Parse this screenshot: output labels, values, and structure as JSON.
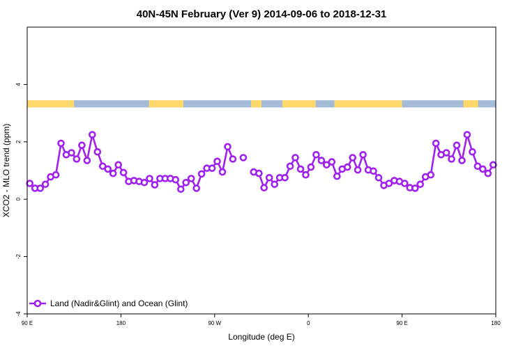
{
  "chart_data": {
    "type": "line",
    "title": "40N-45N February (Ver 9)   2014-09-06 to 2018-12-31",
    "xlabel": "Longitude (deg E)",
    "ylabel": "XCO2 - MLO trend (ppm)",
    "xlim": [
      90,
      540
    ],
    "ylim": [
      -4,
      6
    ],
    "x_ticks": [
      {
        "value": 90,
        "label": "90 E"
      },
      {
        "value": 180,
        "label": "180"
      },
      {
        "value": 270,
        "label": "90 W"
      },
      {
        "value": 360,
        "label": "0"
      },
      {
        "value": 450,
        "label": "90 E"
      },
      {
        "value": 540,
        "label": "180"
      }
    ],
    "y_ticks": [
      {
        "value": -4,
        "label": "-4"
      },
      {
        "value": -2,
        "label": "-2"
      },
      {
        "value": 0,
        "label": "0"
      },
      {
        "value": 2,
        "label": "2"
      },
      {
        "value": 4,
        "label": "4"
      }
    ],
    "grid": false,
    "legend": {
      "position": "bottom-left",
      "entries": [
        "Land (Nadir&Glint) and Ocean (Glint)"
      ]
    },
    "colors": {
      "series": "#a020f0",
      "land": "#ffd86c",
      "ocean": "#a4bcd8"
    },
    "land_ocean_band": {
      "y_range": [
        3.2,
        3.45
      ],
      "land_segments": [
        [
          90,
          135
        ],
        [
          207,
          240
        ],
        [
          305,
          315
        ],
        [
          335,
          367
        ],
        [
          385,
          450
        ],
        [
          509,
          523
        ]
      ]
    },
    "series": [
      {
        "name": "Land (Nadir&Glint) and Ocean (Glint)",
        "x": [
          92.5,
          97.5,
          102.5,
          107.5,
          112.5,
          117.5,
          122.5,
          127.5,
          132.5,
          137.5,
          142.5,
          147.5,
          152.5,
          157.5,
          162.5,
          167.5,
          172.5,
          177.5,
          182.5,
          187.5,
          192.5,
          197.5,
          202.5,
          207.5,
          212.5,
          217.5,
          222.5,
          227.5,
          232.5,
          237.5,
          242.5,
          247.5,
          252.5,
          257.5,
          262.5,
          267.5,
          272.5,
          277.5,
          282.5,
          287.5,
          292.5,
          297.5,
          302.5,
          307.5,
          312.5,
          317.5,
          322.5,
          327.5,
          332.5,
          337.5,
          342.5,
          347.5,
          352.5,
          357.5,
          362.5,
          367.5,
          372.5,
          377.5,
          382.5,
          387.5,
          392.5,
          397.5,
          402.5,
          407.5,
          412.5,
          417.5,
          422.5,
          427.5,
          432.5,
          437.5,
          442.5,
          447.5,
          452.5,
          457.5,
          462.5,
          467.5,
          472.5,
          477.5,
          482.5,
          487.5,
          492.5,
          497.5,
          502.5,
          507.5,
          512.5,
          517.5,
          522.5,
          527.5,
          532.5,
          537.5
        ],
        "values": [
          0.55,
          0.38,
          0.38,
          0.52,
          0.78,
          0.85,
          1.95,
          1.55,
          1.62,
          1.4,
          1.88,
          1.35,
          2.25,
          1.65,
          1.15,
          1.05,
          0.9,
          1.2,
          0.93,
          0.62,
          0.65,
          0.62,
          0.58,
          0.72,
          0.5,
          0.72,
          0.72,
          0.72,
          0.68,
          0.35,
          0.58,
          0.72,
          0.38,
          0.88,
          1.08,
          1.08,
          1.32,
          0.95,
          1.83,
          1.4,
          null,
          1.45,
          null,
          0.95,
          0.9,
          0.4,
          0.75,
          0.52,
          0.75,
          0.75,
          1.15,
          1.45,
          1.05,
          0.85,
          1.12,
          1.55,
          1.35,
          1.2,
          1.3,
          0.8,
          1.05,
          1.12,
          1.45,
          1.02,
          1.55,
          1.02,
          0.98,
          0.75,
          0.48,
          0.55,
          0.65,
          0.62,
          0.55,
          0.4,
          0.38,
          0.52,
          0.78,
          0.85,
          1.95,
          1.55,
          1.62,
          1.4,
          1.88,
          1.35,
          2.25,
          1.65,
          1.15,
          1.05,
          0.9,
          1.2
        ]
      }
    ]
  }
}
